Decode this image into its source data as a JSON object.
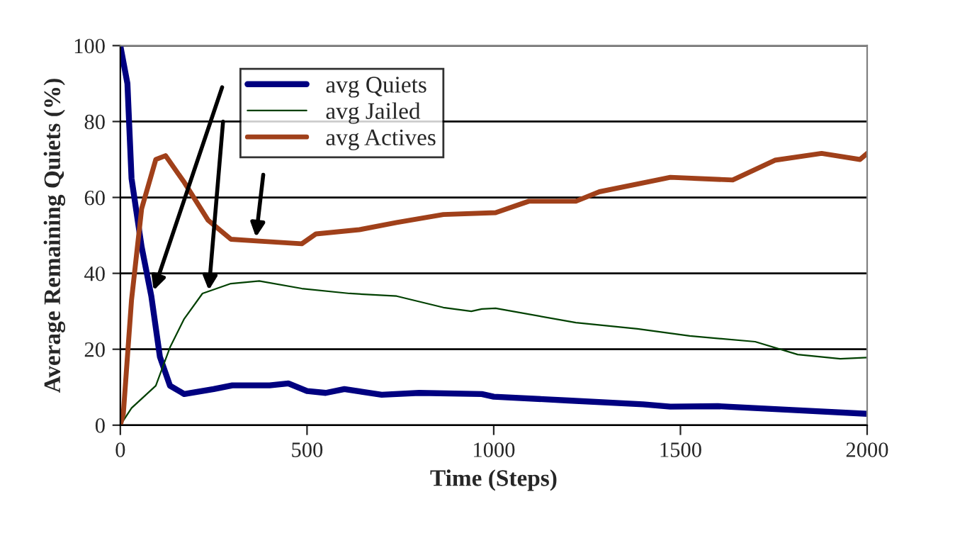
{
  "chart_data": {
    "type": "line",
    "xlabel": "Time (Steps)",
    "ylabel": "Average Remaining Quiets (%)",
    "xlim": [
      0,
      2000
    ],
    "ylim": [
      0,
      100
    ],
    "xticks": [
      0,
      500,
      1000,
      1500,
      2000
    ],
    "yticks": [
      0,
      20,
      40,
      60,
      80,
      100
    ],
    "grid": "y",
    "legend": "top left",
    "marker": "none",
    "line_style": "solid",
    "series": [
      {
        "name": "avg Quiets",
        "color": "#000080",
        "x": [
          0,
          19,
          30,
          57,
          83,
          106,
          133,
          171,
          250,
          300,
          400,
          450,
          500,
          550,
          600,
          700,
          800,
          968,
          1000,
          1200,
          1400,
          1473,
          1600,
          1800,
          2000
        ],
        "values": [
          100,
          90,
          65,
          47,
          34,
          18,
          10.4,
          8.2,
          9.5,
          10.5,
          10.5,
          11,
          9,
          8.5,
          9.5,
          8,
          8.5,
          8.2,
          7.5,
          6.5,
          5.5,
          4.9,
          5,
          4,
          3
        ]
      },
      {
        "name": "avg Jailed",
        "color": "#004000",
        "x": [
          0,
          30,
          95,
          133,
          171,
          220,
          296,
          372,
          486,
          614,
          740,
          865,
          940,
          968,
          1005,
          1220,
          1385,
          1525,
          1700,
          1814,
          1928,
          2000
        ],
        "values": [
          0,
          4.5,
          10.4,
          20.5,
          28,
          34.7,
          37.3,
          38,
          36,
          34.7,
          34,
          31,
          30,
          30.6,
          30.8,
          27,
          25.4,
          23.5,
          22,
          18.6,
          17.5,
          17.8
        ]
      },
      {
        "name": "avg Actives",
        "color": "#a0401a",
        "x": [
          0,
          8,
          30,
          57,
          95,
          121,
          171,
          235,
          296,
          372,
          486,
          524,
          640,
          740,
          865,
          1005,
          1094,
          1220,
          1283,
          1473,
          1640,
          1753,
          1878,
          1981,
          2000
        ],
        "values": [
          0,
          3,
          33,
          57,
          70,
          71,
          64,
          54,
          49,
          48.5,
          47.8,
          50.4,
          51.5,
          53.4,
          55.5,
          56,
          59,
          59,
          61.5,
          65.3,
          64.6,
          69.8,
          71.6,
          70,
          71.6
        ]
      }
    ]
  }
}
